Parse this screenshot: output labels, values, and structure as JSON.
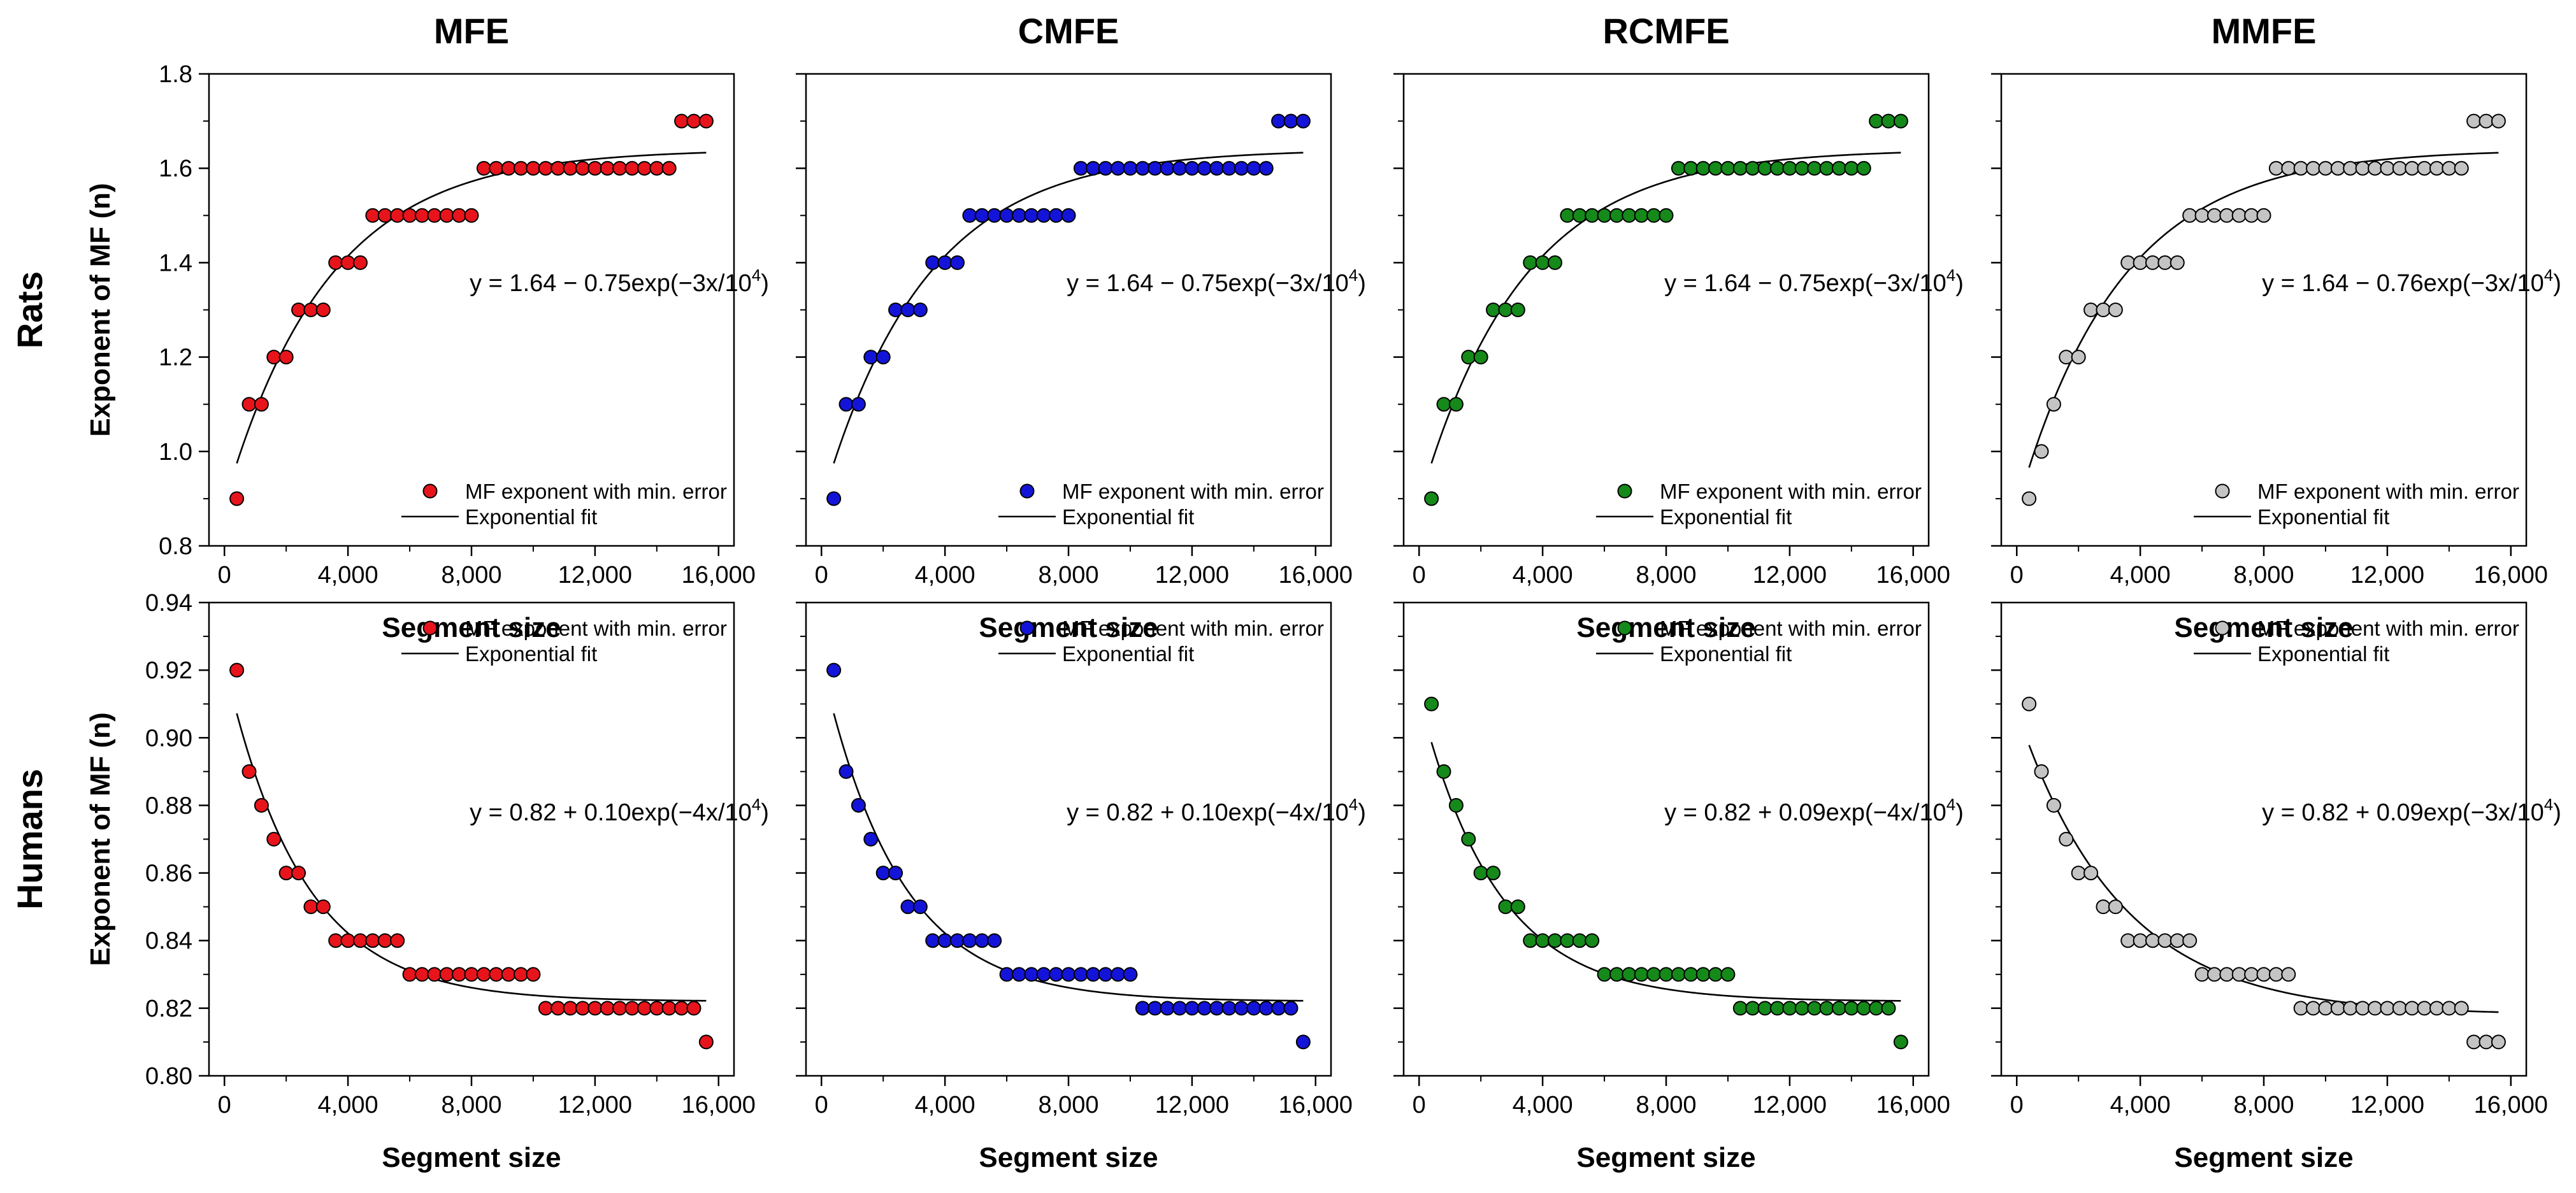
{
  "chart_data": {
    "type": "scatter",
    "layout": "grid 2 rows x 4 columns",
    "columns": [
      "MFE",
      "CMFE",
      "RCMFE",
      "MMFE"
    ],
    "rows": [
      "Rats",
      "Humans"
    ],
    "xlabel": "Segment size",
    "ylabel": "Exponent of MF (n)",
    "xlim": [
      -500,
      16500
    ],
    "xticks": [
      0,
      4000,
      8000,
      12000,
      16000
    ],
    "xtick_labels": [
      "0",
      "4,000",
      "8,000",
      "12,000",
      "16,000"
    ],
    "legend": {
      "marker": "MF exponent with min. error",
      "line": "Exponential fit"
    },
    "series_colors": {
      "MFE": "#e8141b",
      "CMFE": "#1414d9",
      "RCMFE": "#15891a",
      "MMFE": "#c4c4c4"
    },
    "x": [
      400,
      800,
      1200,
      1600,
      2000,
      2400,
      2800,
      3200,
      3600,
      4000,
      4400,
      4800,
      5200,
      5600,
      6000,
      6400,
      6800,
      7200,
      7600,
      8000,
      8400,
      8800,
      9200,
      9600,
      10000,
      10400,
      10800,
      11200,
      11600,
      12000,
      12400,
      12800,
      13200,
      13600,
      14000,
      14400,
      14800,
      15200,
      15600
    ],
    "rats": {
      "ylim": [
        0.8,
        1.8
      ],
      "yticks": [
        0.8,
        1.0,
        1.2,
        1.4,
        1.6,
        1.8
      ],
      "ytick_labels": [
        "0.8",
        "1.0",
        "1.2",
        "1.4",
        "1.6",
        "1.8"
      ],
      "legend_position": "lower-right",
      "panels": [
        {
          "name": "MFE",
          "equation": "y = 1.64 − 0.75exp(−3x/10",
          "equation_exp": "4",
          "equation_close": ")",
          "fit": {
            "a": 1.64,
            "b": -0.75,
            "k": 3
          },
          "values": [
            0.9,
            1.1,
            1.1,
            1.2,
            1.2,
            1.3,
            1.3,
            1.3,
            1.4,
            1.4,
            1.4,
            1.5,
            1.5,
            1.5,
            1.5,
            1.5,
            1.5,
            1.5,
            1.5,
            1.5,
            1.6,
            1.6,
            1.6,
            1.6,
            1.6,
            1.6,
            1.6,
            1.6,
            1.6,
            1.6,
            1.6,
            1.6,
            1.6,
            1.6,
            1.6,
            1.6,
            1.7,
            1.7,
            1.7
          ]
        },
        {
          "name": "CMFE",
          "equation": "y = 1.64 − 0.75exp(−3x/10",
          "equation_exp": "4",
          "equation_close": ")",
          "fit": {
            "a": 1.64,
            "b": -0.75,
            "k": 3
          },
          "values": [
            0.9,
            1.1,
            1.1,
            1.2,
            1.2,
            1.3,
            1.3,
            1.3,
            1.4,
            1.4,
            1.4,
            1.5,
            1.5,
            1.5,
            1.5,
            1.5,
            1.5,
            1.5,
            1.5,
            1.5,
            1.6,
            1.6,
            1.6,
            1.6,
            1.6,
            1.6,
            1.6,
            1.6,
            1.6,
            1.6,
            1.6,
            1.6,
            1.6,
            1.6,
            1.6,
            1.6,
            1.7,
            1.7,
            1.7
          ]
        },
        {
          "name": "RCMFE",
          "equation": "y = 1.64 − 0.75exp(−3x/10",
          "equation_exp": "4",
          "equation_close": ")",
          "fit": {
            "a": 1.64,
            "b": -0.75,
            "k": 3
          },
          "values": [
            0.9,
            1.1,
            1.1,
            1.2,
            1.2,
            1.3,
            1.3,
            1.3,
            1.4,
            1.4,
            1.4,
            1.5,
            1.5,
            1.5,
            1.5,
            1.5,
            1.5,
            1.5,
            1.5,
            1.5,
            1.6,
            1.6,
            1.6,
            1.6,
            1.6,
            1.6,
            1.6,
            1.6,
            1.6,
            1.6,
            1.6,
            1.6,
            1.6,
            1.6,
            1.6,
            1.6,
            1.7,
            1.7,
            1.7
          ]
        },
        {
          "name": "MMFE",
          "equation": "y = 1.64 − 0.76exp(−3x/10",
          "equation_exp": "4",
          "equation_close": ")",
          "fit": {
            "a": 1.64,
            "b": -0.76,
            "k": 3
          },
          "values": [
            0.9,
            1.0,
            1.1,
            1.2,
            1.2,
            1.3,
            1.3,
            1.3,
            1.4,
            1.4,
            1.4,
            1.4,
            1.4,
            1.5,
            1.5,
            1.5,
            1.5,
            1.5,
            1.5,
            1.5,
            1.6,
            1.6,
            1.6,
            1.6,
            1.6,
            1.6,
            1.6,
            1.6,
            1.6,
            1.6,
            1.6,
            1.6,
            1.6,
            1.6,
            1.6,
            1.6,
            1.7,
            1.7,
            1.7
          ]
        }
      ]
    },
    "humans": {
      "ylim": [
        0.8,
        0.94
      ],
      "yticks": [
        0.8,
        0.82,
        0.84,
        0.86,
        0.88,
        0.9,
        0.92,
        0.94
      ],
      "ytick_labels": [
        "0.80",
        "0.82",
        "0.84",
        "0.86",
        "0.88",
        "0.90",
        "0.92",
        "0.94"
      ],
      "legend_position": "top-right",
      "panels": [
        {
          "name": "MFE",
          "equation": "y = 0.82 + 0.10exp(−4x/10",
          "equation_exp": "4",
          "equation_close": ")",
          "fit": {
            "a": 0.822,
            "b": 0.1,
            "k": 4
          },
          "values": [
            0.92,
            0.89,
            0.88,
            0.87,
            0.86,
            0.86,
            0.85,
            0.85,
            0.84,
            0.84,
            0.84,
            0.84,
            0.84,
            0.84,
            0.83,
            0.83,
            0.83,
            0.83,
            0.83,
            0.83,
            0.83,
            0.83,
            0.83,
            0.83,
            0.83,
            0.82,
            0.82,
            0.82,
            0.82,
            0.82,
            0.82,
            0.82,
            0.82,
            0.82,
            0.82,
            0.82,
            0.82,
            0.82,
            0.81
          ]
        },
        {
          "name": "CMFE",
          "equation": "y = 0.82 + 0.10exp(−4x/10",
          "equation_exp": "4",
          "equation_close": ")",
          "fit": {
            "a": 0.822,
            "b": 0.1,
            "k": 4
          },
          "values": [
            0.92,
            0.89,
            0.88,
            0.87,
            0.86,
            0.86,
            0.85,
            0.85,
            0.84,
            0.84,
            0.84,
            0.84,
            0.84,
            0.84,
            0.83,
            0.83,
            0.83,
            0.83,
            0.83,
            0.83,
            0.83,
            0.83,
            0.83,
            0.83,
            0.83,
            0.82,
            0.82,
            0.82,
            0.82,
            0.82,
            0.82,
            0.82,
            0.82,
            0.82,
            0.82,
            0.82,
            0.82,
            0.82,
            0.81
          ]
        },
        {
          "name": "RCMFE",
          "equation": "y = 0.82 + 0.09exp(−4x/10",
          "equation_exp": "4",
          "equation_close": ")",
          "fit": {
            "a": 0.822,
            "b": 0.09,
            "k": 4
          },
          "values": [
            0.91,
            0.89,
            0.88,
            0.87,
            0.86,
            0.86,
            0.85,
            0.85,
            0.84,
            0.84,
            0.84,
            0.84,
            0.84,
            0.84,
            0.83,
            0.83,
            0.83,
            0.83,
            0.83,
            0.83,
            0.83,
            0.83,
            0.83,
            0.83,
            0.83,
            0.82,
            0.82,
            0.82,
            0.82,
            0.82,
            0.82,
            0.82,
            0.82,
            0.82,
            0.82,
            0.82,
            0.82,
            0.82,
            0.81
          ]
        },
        {
          "name": "MMFE",
          "equation": "y = 0.82 + 0.09exp(−3x/10",
          "equation_exp": "4",
          "equation_close": ")",
          "fit": {
            "a": 0.818,
            "b": 0.09,
            "k": 3
          },
          "values": [
            0.91,
            0.89,
            0.88,
            0.87,
            0.86,
            0.86,
            0.85,
            0.85,
            0.84,
            0.84,
            0.84,
            0.84,
            0.84,
            0.84,
            0.83,
            0.83,
            0.83,
            0.83,
            0.83,
            0.83,
            0.83,
            0.83,
            0.82,
            0.82,
            0.82,
            0.82,
            0.82,
            0.82,
            0.82,
            0.82,
            0.82,
            0.82,
            0.82,
            0.82,
            0.82,
            0.82,
            0.81,
            0.81,
            0.81
          ]
        }
      ]
    }
  }
}
